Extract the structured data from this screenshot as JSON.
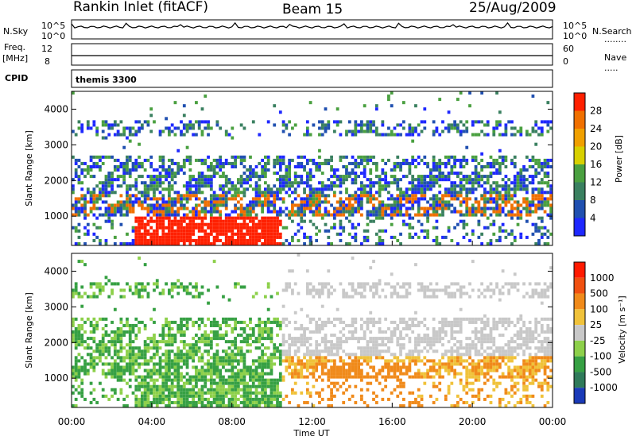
{
  "header": {
    "station": "Rankin Inlet (fitACF)",
    "beam": "Beam 15",
    "date": "25/Aug/2009"
  },
  "side_labels": {
    "nsky": "N.Sky",
    "freq": "Freq.",
    "freq_unit": "[MHz]",
    "cpid": "CPID",
    "nsearch": "N.Search",
    "nave": "Nave",
    "cpid_value": "themis 3300"
  },
  "noise_panel": {
    "left_ticks": [
      "10^5",
      "10^0"
    ],
    "right_ticks": [
      "10^5",
      "10^0"
    ]
  },
  "freq_panel": {
    "left_ticks": [
      "12",
      "8"
    ],
    "right_ticks": [
      "60",
      "0"
    ]
  },
  "colors": {
    "power": [
      "#1e28ff",
      "#2050b0",
      "#3a8060",
      "#4aa040",
      "#d8d000",
      "#f0a000",
      "#f07000",
      "#ff2000"
    ],
    "velocity": [
      "#1a3ab8",
      "#2f7a5a",
      "#36a043",
      "#8dd04a",
      "#c8c8c8",
      "#f0c23a",
      "#f08a1a",
      "#f05010",
      "#ff1a00"
    ]
  },
  "chart_data": [
    {
      "type": "heatmap",
      "name": "power",
      "ylabel": "Slant Range [km]",
      "xlabel": "Time UT",
      "x_ticks": [
        "00:00",
        "04:00",
        "08:00",
        "12:00",
        "16:00",
        "20:00",
        "00:00"
      ],
      "x_range_hours": [
        0,
        24
      ],
      "y_range_km": [
        180,
        4500
      ],
      "y_ticks": [
        1000,
        2000,
        3000,
        4000
      ],
      "colorbar_label": "Power [dB]",
      "colorbar_ticks": [
        "4",
        "8",
        "12",
        "16",
        "20",
        "24",
        "28"
      ],
      "colorbar_range": [
        0,
        32
      ]
    },
    {
      "type": "heatmap",
      "name": "velocity",
      "ylabel": "Slant Range [km]",
      "xlabel": "Time UT",
      "x_ticks": [
        "00:00",
        "04:00",
        "08:00",
        "12:00",
        "16:00",
        "20:00",
        "00:00"
      ],
      "x_range_hours": [
        0,
        24
      ],
      "y_range_km": [
        180,
        4500
      ],
      "y_ticks": [
        1000,
        2000,
        3000,
        4000
      ],
      "colorbar_label": "Velocity [m s⁻¹]",
      "colorbar_ticks": [
        "1000",
        "500",
        "100",
        "25",
        "-25",
        "-100",
        "-500",
        "-1000"
      ]
    }
  ],
  "xaxis_title": "Time UT"
}
